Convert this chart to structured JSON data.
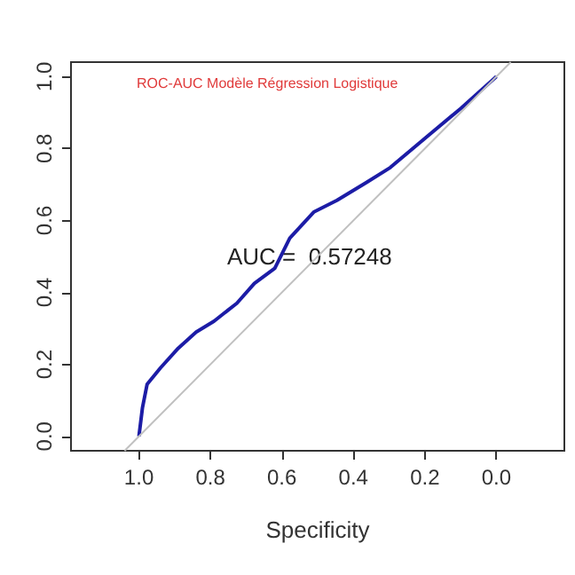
{
  "chart_data": {
    "type": "line",
    "title": "ROC-AUC Modèle Régression Logistique",
    "xlabel": "Specificity",
    "annotations": [
      "AUC =  0.57248"
    ],
    "series": [
      {
        "color": "#1c1ca6",
        "x": [
          1.0,
          0.99,
          0.977,
          0.94,
          0.89,
          0.84,
          0.79,
          0.726,
          0.677,
          0.62,
          0.578,
          0.51,
          0.446,
          0.363,
          0.297,
          0.198,
          0.099,
          0.0
        ],
        "values": [
          0.0,
          0.08,
          0.145,
          0.19,
          0.245,
          0.29,
          0.32,
          0.37,
          0.425,
          0.467,
          0.551,
          0.624,
          0.656,
          0.706,
          0.747,
          0.83,
          0.912,
          1.0
        ]
      },
      {
        "color": "#c0c0c0",
        "x": [
          1.04,
          -0.04
        ],
        "values": [
          -0.04,
          1.04
        ]
      }
    ],
    "xlim": [
      1.19,
      -0.19
    ],
    "ylim": [
      -0.04,
      1.04
    ],
    "xticks": [
      {
        "value": 1,
        "label": "1.0"
      },
      {
        "value": 0.8,
        "label": "0.8"
      },
      {
        "value": 0.6,
        "label": "0.6"
      },
      {
        "value": 0.4,
        "label": "0.4"
      },
      {
        "value": 0.2,
        "label": "0.2"
      },
      {
        "value": 0,
        "label": "0.0"
      }
    ],
    "yticks": [
      {
        "value": 0,
        "label": "0.0"
      },
      {
        "value": 0.2,
        "label": "0.2"
      },
      {
        "value": 0.4,
        "label": "0.4"
      },
      {
        "value": 0.6,
        "label": "0.6"
      },
      {
        "value": 0.8,
        "label": "0.8"
      },
      {
        "value": 1,
        "label": "1.0"
      }
    ],
    "grid": false,
    "marker": "none",
    "line_style": "solid"
  }
}
